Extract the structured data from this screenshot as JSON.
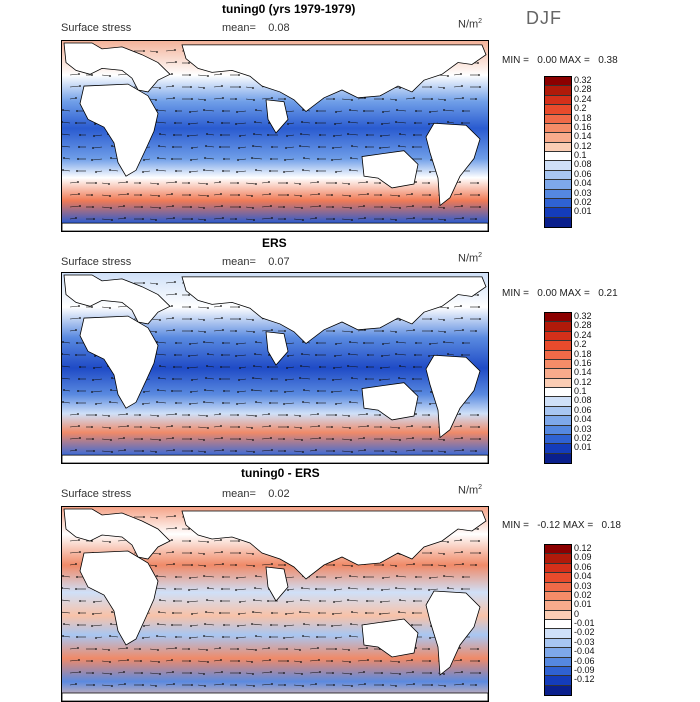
{
  "season": "DJF",
  "panels": [
    {
      "title": "tuning0 (yrs 1979-1979)",
      "sublabel": "Surface stress",
      "mean_label": "mean=",
      "mean_value": "0.08",
      "units": "N/m",
      "units_exp": "2",
      "min_label": "MIN =",
      "min_value": "0.00",
      "max_label": "MAX =",
      "max_value": "0.38",
      "levels": [
        "0.32",
        "0.28",
        "0.24",
        "0.2",
        "0.18",
        "0.16",
        "0.14",
        "0.12",
        "0.1",
        "0.08",
        "0.06",
        "0.04",
        "0.03",
        "0.02",
        "0.01"
      ],
      "colors": [
        "#8b0000",
        "#b01a0a",
        "#d4301a",
        "#e84b2c",
        "#f06a48",
        "#f58c68",
        "#f8ab8c",
        "#fbcdb4",
        "#ffffff",
        "#cfe0f8",
        "#a8c6f2",
        "#7ea8ea",
        "#5588e0",
        "#2f62d2",
        "#143cba",
        "#0a1f8c"
      ]
    },
    {
      "title": "ERS",
      "sublabel": "Surface stress",
      "mean_label": "mean=",
      "mean_value": "0.07",
      "units": "N/m",
      "units_exp": "2",
      "min_label": "MIN =",
      "min_value": "0.00",
      "max_label": "MAX =",
      "max_value": "0.21",
      "levels": [
        "0.32",
        "0.28",
        "0.24",
        "0.2",
        "0.18",
        "0.16",
        "0.14",
        "0.12",
        "0.1",
        "0.08",
        "0.06",
        "0.04",
        "0.03",
        "0.02",
        "0.01"
      ],
      "colors": [
        "#8b0000",
        "#b01a0a",
        "#d4301a",
        "#e84b2c",
        "#f06a48",
        "#f58c68",
        "#f8ab8c",
        "#fbcdb4",
        "#ffffff",
        "#cfe0f8",
        "#a8c6f2",
        "#7ea8ea",
        "#5588e0",
        "#2f62d2",
        "#143cba",
        "#0a1f8c"
      ]
    },
    {
      "title": "tuning0 - ERS",
      "sublabel": "Surface stress",
      "mean_label": "mean=",
      "mean_value": "0.02",
      "units": "N/m",
      "units_exp": "2",
      "min_label": "MIN =",
      "min_value": "-0.12",
      "max_label": "MAX =",
      "max_value": "0.18",
      "levels": [
        "0.12",
        "0.09",
        "0.06",
        "0.04",
        "0.03",
        "0.02",
        "0.01",
        "0",
        "-0.01",
        "-0.02",
        "-0.03",
        "-0.04",
        "-0.06",
        "-0.09",
        "-0.12"
      ],
      "colors": [
        "#8b0000",
        "#b01a0a",
        "#d4301a",
        "#e84b2c",
        "#f06a48",
        "#f58c68",
        "#f8ab8c",
        "#fbcdb4",
        "#ffffff",
        "#cfe0f8",
        "#a8c6f2",
        "#7ea8ea",
        "#5588e0",
        "#2f62d2",
        "#143cba",
        "#0a1f8c"
      ]
    }
  ]
}
